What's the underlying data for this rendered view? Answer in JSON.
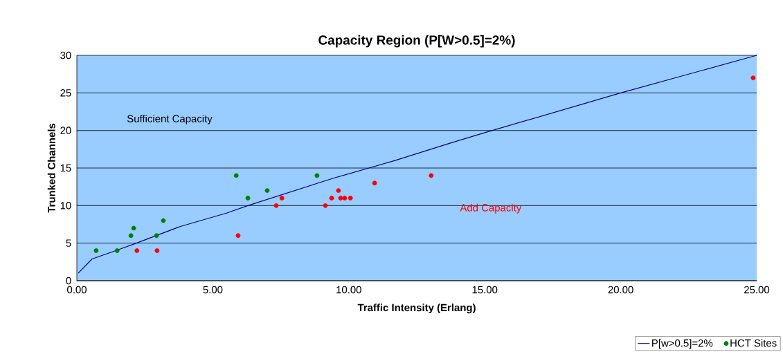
{
  "chart_data": {
    "type": "scatter",
    "title": "Capacity Region (P[W>0.5]=2%)",
    "xlabel": "Traffic Intensity (Erlang)",
    "ylabel": "Trunked Channels",
    "annotations": [
      "Sufficient Capacity",
      "Add Capacity"
    ],
    "xlim": [
      0,
      25
    ],
    "ylim": [
      0,
      30
    ],
    "xticks": [
      {
        "value": 0,
        "label": "0.00"
      },
      {
        "value": 5,
        "label": "5.00"
      },
      {
        "value": 10,
        "label": "10.00"
      },
      {
        "value": 15,
        "label": "15.00"
      },
      {
        "value": 20,
        "label": "20.00"
      },
      {
        "value": 25,
        "label": "25.00"
      }
    ],
    "yticks": [
      0,
      5,
      10,
      15,
      20,
      25,
      30
    ],
    "grid": "y",
    "legend": "bottom right",
    "series": [
      {
        "name": "P[w>0.5]=2%",
        "type": "line",
        "marker": "none",
        "color": "#000080",
        "x": [
          0.05,
          0.56,
          1.43,
          2.19,
          3.79,
          5.5,
          6.29,
          9.39,
          10.74,
          11.7,
          13.72,
          15,
          20,
          25
        ],
        "values": [
          1,
          2.9,
          4,
          5,
          7.2,
          9,
          10,
          13.6,
          15,
          16,
          18.3,
          19.7,
          25,
          30
        ]
      },
      {
        "name": "HCT Sites",
        "marker": "circle",
        "color": "#008000",
        "x": [
          0.71,
          1.48,
          1.99,
          2.09,
          2.93,
          3.18,
          5.86,
          6.29,
          7.0,
          8.83
        ],
        "values": [
          4,
          4,
          6,
          7,
          6,
          8,
          14,
          11,
          12,
          14
        ]
      },
      {
        "marker": "circle",
        "color": "#ff0000",
        "x": [
          2.21,
          2.95,
          5.93,
          7.33,
          7.54,
          9.14,
          9.37,
          9.62,
          9.7,
          9.85,
          10.06,
          10.95,
          13.03,
          24.87
        ],
        "values": [
          4,
          4,
          6,
          10,
          11,
          10,
          11,
          12,
          11,
          11,
          11,
          13,
          14,
          27
        ]
      }
    ]
  }
}
